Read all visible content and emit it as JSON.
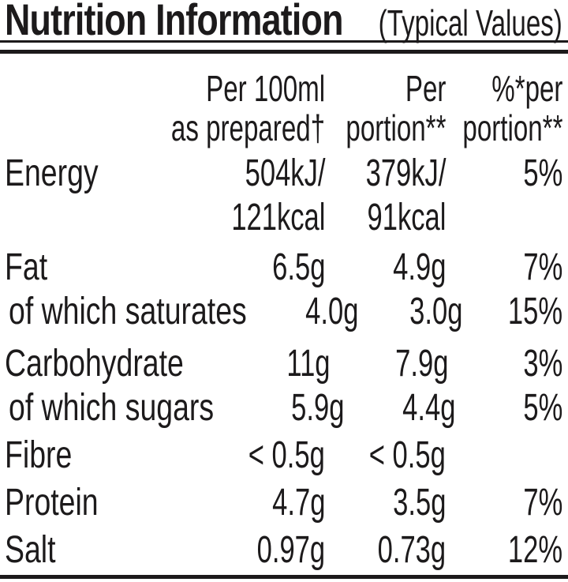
{
  "title": "Nutrition Information",
  "title_qualifier": "(Typical Values)",
  "colors": {
    "text": "#1c1a1b",
    "background": "#ffffff"
  },
  "columns": {
    "per100ml": "Per 100ml\nas prepared†",
    "perPortion": "Per\nportion**",
    "percentPerPortion": "%*per\nportion**"
  },
  "rows": [
    {
      "label": "Energy",
      "per100ml": "504kJ/\n121kcal",
      "perPortion": "379kJ/\n91kcal",
      "percent": "5%"
    },
    {
      "label": "Fat",
      "per100ml": "6.5g",
      "perPortion": "4.9g",
      "percent": "7%"
    },
    {
      "label": "of which saturates",
      "per100ml": "4.0g",
      "perPortion": "3.0g",
      "percent": "15%"
    },
    {
      "label": "Carbohydrate",
      "per100ml": "11g",
      "perPortion": "7.9g",
      "percent": "3%"
    },
    {
      "label": "of which sugars",
      "per100ml": "5.9g",
      "perPortion": "4.4g",
      "percent": "5%"
    },
    {
      "label": "Fibre",
      "per100ml": "< 0.5g",
      "perPortion": "< 0.5g",
      "percent": ""
    },
    {
      "label": "Protein",
      "per100ml": "4.7g",
      "perPortion": "3.5g",
      "percent": "7%"
    },
    {
      "label": "Salt",
      "per100ml": "0.97g",
      "perPortion": "0.73g",
      "percent": "12%"
    }
  ]
}
